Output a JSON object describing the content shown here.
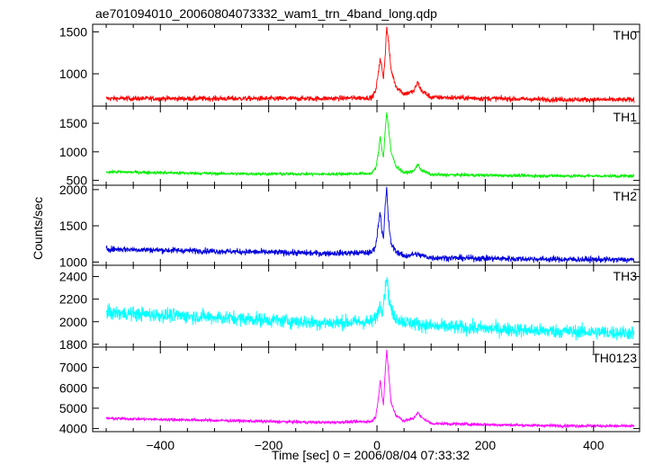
{
  "title": "ae701094010_20060804073332_wam1_trn_4band_long.qdp",
  "xlabel": "Time [sec] 0 = 2006/08/04 07:33:32",
  "ylabel": "Counts/sec",
  "chart_data": {
    "type": "line",
    "title": "ae701094010_20060804073332_wam1_trn_4band_long.qdp",
    "xlabel": "Time [sec] 0 = 2006/08/04 07:33:32",
    "ylabel": "Counts/sec",
    "xlim": [
      -525,
      485
    ],
    "xticks": [
      -400,
      -200,
      0,
      200,
      400
    ],
    "x_data_range": [
      -500,
      475
    ],
    "grid": false,
    "panels": [
      {
        "name": "TH0",
        "color": "#ff0000",
        "ylim": [
          615,
          1590
        ],
        "yticks": [
          1000,
          1500
        ],
        "keypoints": [
          [
            -500,
            705
          ],
          [
            -300,
            705
          ],
          [
            -100,
            705
          ],
          [
            -10,
            715
          ],
          [
            -2,
            800
          ],
          [
            3,
            1050
          ],
          [
            6,
            1170
          ],
          [
            9,
            1080
          ],
          [
            12,
            950
          ],
          [
            15,
            1200
          ],
          [
            18,
            1560
          ],
          [
            21,
            1400
          ],
          [
            26,
            1050
          ],
          [
            35,
            850
          ],
          [
            50,
            760
          ],
          [
            68,
            790
          ],
          [
            75,
            900
          ],
          [
            82,
            800
          ],
          [
            100,
            720
          ],
          [
            300,
            695
          ],
          [
            475,
            690
          ]
        ],
        "noise": 22
      },
      {
        "name": "TH1",
        "color": "#00ee00",
        "ylim": [
          415,
          1800
        ],
        "yticks": [
          500,
          1000,
          1500
        ],
        "keypoints": [
          [
            -500,
            650
          ],
          [
            -300,
            620
          ],
          [
            -100,
            610
          ],
          [
            -10,
            620
          ],
          [
            -2,
            720
          ],
          [
            3,
            1000
          ],
          [
            6,
            1280
          ],
          [
            9,
            1050
          ],
          [
            12,
            900
          ],
          [
            15,
            1350
          ],
          [
            18,
            1700
          ],
          [
            21,
            1450
          ],
          [
            26,
            1000
          ],
          [
            35,
            750
          ],
          [
            50,
            630
          ],
          [
            68,
            660
          ],
          [
            75,
            780
          ],
          [
            82,
            680
          ],
          [
            100,
            600
          ],
          [
            300,
            580
          ],
          [
            475,
            575
          ]
        ],
        "noise": 20
      },
      {
        "name": "TH2",
        "color": "#0000dd",
        "ylim": [
          955,
          2060
        ],
        "yticks": [
          1000,
          1500,
          2000
        ],
        "keypoints": [
          [
            -500,
            1180
          ],
          [
            -300,
            1150
          ],
          [
            -100,
            1120
          ],
          [
            -10,
            1130
          ],
          [
            -2,
            1230
          ],
          [
            3,
            1550
          ],
          [
            6,
            1700
          ],
          [
            9,
            1450
          ],
          [
            12,
            1300
          ],
          [
            15,
            1750
          ],
          [
            18,
            2020
          ],
          [
            21,
            1600
          ],
          [
            26,
            1250
          ],
          [
            35,
            1150
          ],
          [
            50,
            1080
          ],
          [
            70,
            1110
          ],
          [
            100,
            1060
          ],
          [
            300,
            1040
          ],
          [
            475,
            1030
          ]
        ],
        "noise": 30
      },
      {
        "name": "TH3",
        "color": "#00ffff",
        "ylim": [
          1775,
          2500
        ],
        "yticks": [
          1800,
          2000,
          2200,
          2400
        ],
        "keypoints": [
          [
            -500,
            2080
          ],
          [
            -300,
            2040
          ],
          [
            -100,
            1990
          ],
          [
            -10,
            2000
          ],
          [
            0,
            2050
          ],
          [
            5,
            2150
          ],
          [
            10,
            2100
          ],
          [
            15,
            2280
          ],
          [
            18,
            2420
          ],
          [
            22,
            2200
          ],
          [
            30,
            2050
          ],
          [
            50,
            2000
          ],
          [
            100,
            1960
          ],
          [
            300,
            1920
          ],
          [
            475,
            1900
          ]
        ],
        "noise": 45
      },
      {
        "name": "TH0123",
        "color": "#ff00ff",
        "ylim": [
          3850,
          8000
        ],
        "yticks": [
          4000,
          5000,
          6000,
          7000
        ],
        "keypoints": [
          [
            -500,
            4500
          ],
          [
            -300,
            4400
          ],
          [
            -100,
            4300
          ],
          [
            -10,
            4350
          ],
          [
            -2,
            4600
          ],
          [
            3,
            5600
          ],
          [
            6,
            6400
          ],
          [
            9,
            5700
          ],
          [
            12,
            5100
          ],
          [
            15,
            6700
          ],
          [
            18,
            7850
          ],
          [
            21,
            6900
          ],
          [
            26,
            5300
          ],
          [
            35,
            4650
          ],
          [
            50,
            4380
          ],
          [
            68,
            4500
          ],
          [
            75,
            4800
          ],
          [
            82,
            4550
          ],
          [
            100,
            4250
          ],
          [
            300,
            4150
          ],
          [
            475,
            4120
          ]
        ],
        "noise": 55
      }
    ]
  }
}
